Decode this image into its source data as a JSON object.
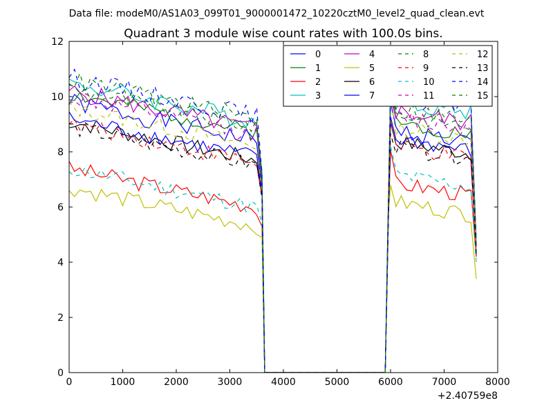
{
  "chart_data": {
    "type": "line",
    "suptitle": "Data file: modeM0/AS1A03_099T01_9000001472_10220cztM0_level2_quad_clean.evt",
    "title": "Quadrant 3 module wise count rates with 100.0s bins.",
    "xlabel": "",
    "ylabel": "",
    "x_offset_label": "+2.40759e8",
    "xlim": [
      0,
      8000
    ],
    "ylim": [
      0,
      12
    ],
    "xticks": [
      0,
      1000,
      2000,
      3000,
      4000,
      5000,
      6000,
      7000,
      8000
    ],
    "yticks": [
      0,
      2,
      4,
      6,
      8,
      10,
      12
    ],
    "grid": false,
    "legend_position": "top-right",
    "segments": [
      {
        "start": 0,
        "step": 100,
        "count": 36
      },
      {
        "start": 6000,
        "step": 100,
        "count": 16
      }
    ],
    "series": [
      {
        "name": "0",
        "color": "#0000ff",
        "dash": "solid",
        "level1": 8.9,
        "level2": 8.2,
        "drop1": 6.6,
        "drop2": 4.2,
        "noise": 0.35,
        "seed": 1
      },
      {
        "name": "1",
        "color": "#008000",
        "dash": "solid",
        "level1": 9.2,
        "level2": 8.5,
        "drop1": 6.8,
        "drop2": 4.6,
        "noise": 0.3,
        "seed": 2
      },
      {
        "name": "2",
        "color": "#ff0000",
        "dash": "solid",
        "level1": 6.5,
        "level2": 6.3,
        "drop1": 5.3,
        "drop2": 4.2,
        "noise": 0.3,
        "seed": 3
      },
      {
        "name": "3",
        "color": "#00bfbf",
        "dash": "solid",
        "level1": 9.6,
        "level2": 9.3,
        "drop1": 7.3,
        "drop2": 4.8,
        "noise": 0.35,
        "seed": 4
      },
      {
        "name": "4",
        "color": "#bf00bf",
        "dash": "solid",
        "level1": 9.3,
        "level2": 8.9,
        "drop1": 7.0,
        "drop2": 4.5,
        "noise": 0.35,
        "seed": 5
      },
      {
        "name": "5",
        "color": "#bfbf00",
        "dash": "solid",
        "level1": 5.8,
        "level2": 5.6,
        "drop1": 4.9,
        "drop2": 3.4,
        "noise": 0.3,
        "seed": 6
      },
      {
        "name": "6",
        "color": "#000000",
        "dash": "solid",
        "level1": 8.2,
        "level2": 7.8,
        "drop1": 6.5,
        "drop2": 4.4,
        "noise": 0.3,
        "seed": 7
      },
      {
        "name": "7",
        "color": "#0000ff",
        "dash": "solid",
        "level1": 8.3,
        "level2": 7.9,
        "drop1": 6.4,
        "drop2": 4.3,
        "noise": 0.3,
        "seed": 8
      },
      {
        "name": "8",
        "color": "#008000",
        "dash": "dashed",
        "level1": 9.4,
        "level2": 8.8,
        "drop1": 6.9,
        "drop2": 4.5,
        "noise": 0.3,
        "seed": 9
      },
      {
        "name": "9",
        "color": "#ff0000",
        "dash": "dashed",
        "level1": 8.1,
        "level2": 7.6,
        "drop1": 6.4,
        "drop2": 4.3,
        "noise": 0.3,
        "seed": 10
      },
      {
        "name": "10",
        "color": "#00bfbf",
        "dash": "dashed",
        "level1": 6.5,
        "level2": 6.6,
        "drop1": 5.4,
        "drop2": 4.0,
        "noise": 0.3,
        "seed": 11
      },
      {
        "name": "11",
        "color": "#bf00bf",
        "dash": "dashed",
        "level1": 9.1,
        "level2": 8.7,
        "drop1": 6.8,
        "drop2": 4.6,
        "noise": 0.35,
        "seed": 12
      },
      {
        "name": "12",
        "color": "#bfbf00",
        "dash": "dashed",
        "level1": 8.7,
        "level2": 8.3,
        "drop1": 6.6,
        "drop2": 4.4,
        "noise": 0.3,
        "seed": 13
      },
      {
        "name": "13",
        "color": "#000000",
        "dash": "dashed",
        "level1": 8.0,
        "level2": 7.6,
        "drop1": 6.3,
        "drop2": 4.3,
        "noise": 0.3,
        "seed": 14
      },
      {
        "name": "14",
        "color": "#0000ff",
        "dash": "dashed",
        "level1": 9.8,
        "level2": 9.4,
        "drop1": 7.2,
        "drop2": 4.8,
        "noise": 0.35,
        "seed": 15
      },
      {
        "name": "15",
        "color": "#008000",
        "dash": "dashed",
        "level1": 9.7,
        "level2": 9.0,
        "drop1": 7.1,
        "drop2": 4.7,
        "noise": 0.35,
        "seed": 16
      }
    ]
  }
}
